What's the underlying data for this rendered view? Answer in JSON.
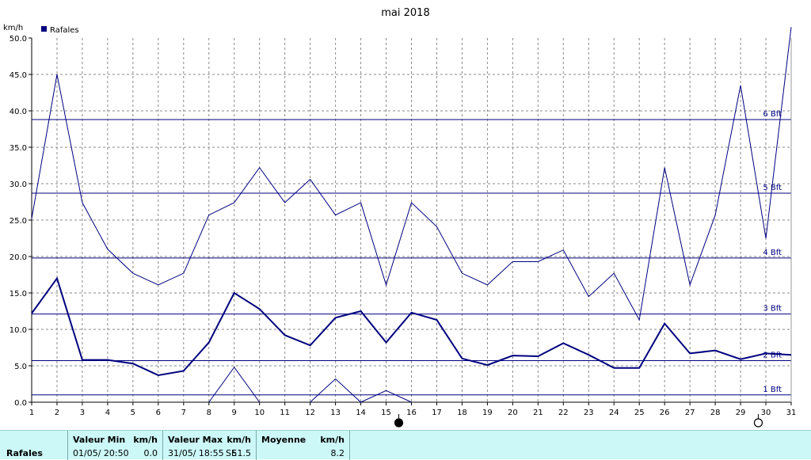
{
  "chart_data": {
    "type": "line",
    "title": "mai 2018",
    "ylabel": "km/h",
    "xlabel": "",
    "ylim": [
      0,
      50
    ],
    "xlim": [
      1,
      31
    ],
    "grid": true,
    "legend_position": "top-left",
    "x": [
      1,
      2,
      3,
      4,
      5,
      6,
      7,
      8,
      9,
      10,
      11,
      12,
      13,
      14,
      15,
      16,
      17,
      18,
      19,
      20,
      21,
      22,
      23,
      24,
      25,
      26,
      27,
      28,
      29,
      30,
      31
    ],
    "x_tick_labels": [
      "1",
      "2",
      "3",
      "4",
      "5",
      "6",
      "7",
      "8",
      "9",
      "10",
      "11",
      "12",
      "13",
      "14",
      "15",
      "16",
      "17",
      "18",
      "19",
      "20",
      "21",
      "22",
      "23",
      "24",
      "25",
      "26",
      "27",
      "28",
      "29",
      "30",
      "31"
    ],
    "y_ticks": [
      0,
      5,
      10,
      15,
      20,
      25,
      30,
      35,
      40,
      45,
      50
    ],
    "y_tick_labels": [
      "0.0",
      "5.0",
      "10.0",
      "15.0",
      "20.0",
      "25.0",
      "30.0",
      "35.0",
      "40.0",
      "45.0",
      "50.0"
    ],
    "series": [
      {
        "name": "Rafales",
        "role": "mean",
        "color": "#00007f",
        "values": [
          12.2,
          17.0,
          5.8,
          5.8,
          5.3,
          3.7,
          4.3,
          8.2,
          15.0,
          12.8,
          9.2,
          7.8,
          11.6,
          12.5,
          8.2,
          12.3,
          11.3,
          6.0,
          5.1,
          6.4,
          6.3,
          8.1,
          6.5,
          4.7,
          4.7,
          10.8,
          6.7,
          7.1,
          5.9,
          6.7,
          6.5
        ]
      },
      {
        "role": "max",
        "color": "#00007f",
        "values": [
          25.2,
          45.0,
          27.4,
          21.0,
          17.7,
          16.1,
          17.7,
          25.7,
          27.4,
          32.2,
          27.4,
          30.6,
          25.7,
          27.4,
          16.1,
          27.4,
          24.1,
          17.7,
          16.1,
          19.3,
          19.3,
          20.9,
          14.5,
          17.7,
          11.3,
          32.2,
          16.1,
          25.7,
          43.5,
          22.5,
          51.5
        ]
      },
      {
        "role": "min",
        "color": "#00007f",
        "values": [
          null,
          null,
          null,
          null,
          null,
          null,
          null,
          0.0,
          4.8,
          0.0,
          null,
          0.0,
          3.2,
          0.0,
          1.6,
          0.0,
          null,
          null,
          null,
          null,
          null,
          null,
          null,
          null,
          null,
          null,
          null,
          null,
          null,
          null,
          null
        ]
      }
    ],
    "reference_lines": [
      {
        "label": "1 Bft",
        "value": 1.0
      },
      {
        "label": "2 Bft",
        "value": 5.7
      },
      {
        "label": "3 Bft",
        "value": 12.1
      },
      {
        "label": "4 Bft",
        "value": 19.8
      },
      {
        "label": "5 Bft",
        "value": 28.7
      },
      {
        "label": "6 Bft",
        "value": 38.8
      }
    ],
    "moon_phases": [
      {
        "day": 15.5,
        "phase": "new-moon"
      },
      {
        "day": 29.7,
        "phase": "full-moon"
      }
    ]
  },
  "stats": {
    "series_label": "Rafales",
    "min_header": "Valeur Min",
    "min_unit": "km/h",
    "min_date": "01/05/  20:50",
    "min_value": "0.0",
    "max_header": "Valeur Max",
    "max_unit": "km/h",
    "max_date": "31/05/  18:55",
    "max_dir": "SE",
    "max_value": "51.5",
    "avg_header": "Moyenne",
    "avg_unit": "km/h",
    "avg_value": "8.2"
  }
}
